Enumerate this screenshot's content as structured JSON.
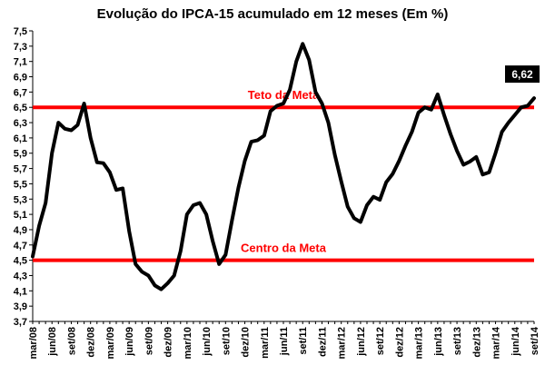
{
  "chart_data": {
    "type": "line",
    "title": "Evolução do IPCA-15 acumulado em 12 meses (Em %)",
    "xlabel": "",
    "ylabel": "",
    "ylim": [
      3.7,
      7.5
    ],
    "yticks": [
      "3,7",
      "3,9",
      "4,1",
      "4,3",
      "4,5",
      "4,7",
      "4,9",
      "5,1",
      "5,3",
      "5,5",
      "5,7",
      "5,9",
      "6,1",
      "6,3",
      "6,5",
      "6,7",
      "6,9",
      "7,1",
      "7,3",
      "7,5"
    ],
    "x_tick_labels": [
      "mar/08",
      "jun/08",
      "set/08",
      "dez/08",
      "mar/09",
      "jun/09",
      "set/09",
      "dez/09",
      "mar/10",
      "jun/10",
      "set/10",
      "dez/10",
      "mar/11",
      "jun/11",
      "set/11",
      "dez/11",
      "mar/12",
      "jun/12",
      "set/12",
      "dez/12",
      "mar/13",
      "jun/13",
      "set/13",
      "dez/13",
      "mar/14",
      "jun/14",
      "set/14"
    ],
    "categories": [
      "mar/08",
      "abr/08",
      "mai/08",
      "jun/08",
      "jul/08",
      "ago/08",
      "set/08",
      "out/08",
      "nov/08",
      "dez/08",
      "jan/09",
      "fev/09",
      "mar/09",
      "abr/09",
      "mai/09",
      "jun/09",
      "jul/09",
      "ago/09",
      "set/09",
      "out/09",
      "nov/09",
      "dez/09",
      "jan/10",
      "fev/10",
      "mar/10",
      "abr/10",
      "mai/10",
      "jun/10",
      "jul/10",
      "ago/10",
      "set/10",
      "out/10",
      "nov/10",
      "dez/10",
      "jan/11",
      "fev/11",
      "mar/11",
      "abr/11",
      "mai/11",
      "jun/11",
      "jul/11",
      "ago/11",
      "set/11",
      "out/11",
      "nov/11",
      "dez/11",
      "jan/12",
      "fev/12",
      "mar/12",
      "abr/12",
      "mai/12",
      "jun/12",
      "jul/12",
      "ago/12",
      "set/12",
      "out/12",
      "nov/12",
      "dez/12",
      "jan/13",
      "fev/13",
      "mar/13",
      "abr/13",
      "mai/13",
      "jun/13",
      "jul/13",
      "ago/13",
      "set/13",
      "out/13",
      "nov/13",
      "dez/13",
      "jan/14",
      "fev/14",
      "mar/14",
      "abr/14",
      "mai/14",
      "jun/14",
      "jul/14",
      "ago/14",
      "set/14"
    ],
    "series": [
      {
        "color": "#000000",
        "values": [
          4.55,
          4.95,
          5.25,
          5.9,
          6.3,
          6.22,
          6.2,
          6.27,
          6.55,
          6.1,
          5.78,
          5.77,
          5.65,
          5.42,
          5.44,
          4.88,
          4.45,
          4.35,
          4.3,
          4.17,
          4.12,
          4.2,
          4.3,
          4.62,
          5.1,
          5.22,
          5.25,
          5.1,
          4.75,
          4.45,
          4.57,
          5.02,
          5.45,
          5.8,
          6.05,
          6.07,
          6.13,
          6.45,
          6.52,
          6.55,
          6.73,
          7.1,
          7.33,
          7.12,
          6.7,
          6.55,
          6.3,
          5.88,
          5.53,
          5.2,
          5.05,
          5.0,
          5.22,
          5.33,
          5.29,
          5.52,
          5.63,
          5.8,
          6.0,
          6.18,
          6.43,
          6.5,
          6.47,
          6.67,
          6.4,
          6.15,
          5.93,
          5.75,
          5.79,
          5.85,
          5.62,
          5.65,
          5.9,
          6.18,
          6.3,
          6.4,
          6.5,
          6.52,
          6.62
        ]
      }
    ],
    "reference_lines": [
      {
        "label": "Teto da Meta",
        "value": 6.5,
        "color": "#ff0000"
      },
      {
        "label": "Centro da Meta",
        "value": 4.5,
        "color": "#ff0000"
      }
    ],
    "last_value_label": "6,62",
    "grid": false
  }
}
